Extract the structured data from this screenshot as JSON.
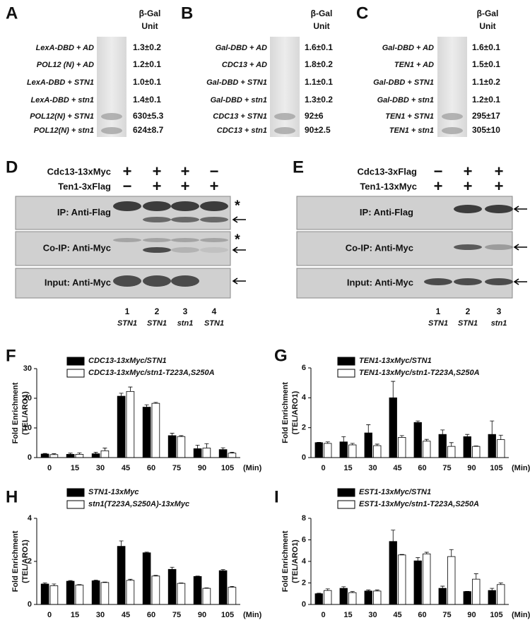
{
  "figure": {
    "panels_abc": [
      {
        "label": "A",
        "header": [
          "β-Gal",
          "Unit"
        ],
        "rows": [
          {
            "construct": "LexA-DBD + AD",
            "value": "1.3±0.2"
          },
          {
            "construct": "POL12 (N) + AD",
            "value": "1.2±0.1"
          },
          {
            "construct": "LexA-DBD + STN1",
            "value": "1.0±0.1"
          },
          {
            "construct": "LexA-DBD + stn1",
            "value": "1.4±0.1"
          },
          {
            "construct": "POL12(N) + STN1",
            "value": "630±5.3"
          },
          {
            "construct": "POL12(N) + stn1",
            "value": "624±8.7"
          }
        ]
      },
      {
        "label": "B",
        "header": [
          "β-Gal",
          "Unit"
        ],
        "rows": [
          {
            "construct": "Gal-DBD + AD",
            "value": "1.6±0.1"
          },
          {
            "construct": "CDC13 + AD",
            "value": "1.8±0.2"
          },
          {
            "construct": "Gal-DBD + STN1",
            "value": "1.1±0.1"
          },
          {
            "construct": "Gal-DBD + stn1",
            "value": "1.3±0.2"
          },
          {
            "construct": "CDC13 + STN1",
            "value": "92±6"
          },
          {
            "construct": "CDC13 + stn1",
            "value": "90±2.5"
          }
        ]
      },
      {
        "label": "C",
        "header": [
          "β-Gal",
          "Unit"
        ],
        "rows": [
          {
            "construct": "Gal-DBD + AD",
            "value": "1.6±0.1"
          },
          {
            "construct": "TEN1 + AD",
            "value": "1.5±0.1"
          },
          {
            "construct": "Gal-DBD + STN1",
            "value": "1.1±0.2"
          },
          {
            "construct": "Gal-DBD + stn1",
            "value": "1.2±0.1"
          },
          {
            "construct": "TEN1 + STN1",
            "value": "295±17"
          },
          {
            "construct": "TEN1 + stn1",
            "value": "305±10"
          }
        ]
      }
    ],
    "panels_de": [
      {
        "label": "D",
        "conditions": [
          {
            "name": "Cdc13-13xMyc",
            "signs": [
              "+",
              "+",
              "+",
              "−"
            ]
          },
          {
            "name": "Ten1-3xFlag",
            "signs": [
              "−",
              "+",
              "+",
              "+"
            ]
          }
        ],
        "blots": [
          {
            "name": "IP: Anti-Flag",
            "asterisk": "*"
          },
          {
            "name": "Co-IP: Anti-Myc",
            "asterisk": "*"
          },
          {
            "name": "Input: Anti-Myc"
          }
        ],
        "lanes": [
          "1",
          "2",
          "3",
          "4"
        ],
        "genotypes": [
          "STN1",
          "STN1",
          "stn1",
          "STN1"
        ]
      },
      {
        "label": "E",
        "conditions": [
          {
            "name": "Cdc13-3xFlag",
            "signs": [
              "−",
              "+",
              "+"
            ]
          },
          {
            "name": "Ten1-13xMyc",
            "signs": [
              "+",
              "+",
              "+"
            ]
          }
        ],
        "blots": [
          {
            "name": "IP: Anti-Flag"
          },
          {
            "name": "Co-IP: Anti-Myc"
          },
          {
            "name": "Input: Anti-Myc"
          }
        ],
        "lanes": [
          "1",
          "2",
          "3"
        ],
        "genotypes": [
          "STN1",
          "STN1",
          "stn1"
        ]
      }
    ]
  },
  "chart_data": [
    {
      "type": "bar",
      "label": "F",
      "ylabel": [
        "Fold Enrichment",
        "(TEL/ARO1)"
      ],
      "xlabel": "(Min)",
      "categories": [
        "0",
        "15",
        "30",
        "45",
        "60",
        "75",
        "90",
        "105"
      ],
      "ylim": [
        0,
        30
      ],
      "yticks": [
        0,
        10,
        20,
        30
      ],
      "series": [
        {
          "name": "CDC13-13xMyc/STN1",
          "color": "#000000",
          "values": [
            1.2,
            1.1,
            1.3,
            20.7,
            17,
            7.4,
            3,
            2.7
          ],
          "errors": [
            0.2,
            0.4,
            0.5,
            1,
            0.8,
            0.8,
            1.2,
            0.6
          ]
        },
        {
          "name": "CDC13-13xMyc/stn1-T223A,S250A",
          "color": "#ffffff",
          "values": [
            1,
            1.1,
            2.3,
            22.3,
            18.3,
            7.1,
            3.2,
            1.5
          ],
          "errors": [
            0.3,
            0.5,
            0.9,
            1.5,
            0.3,
            0.3,
            1.5,
            0.3
          ]
        }
      ]
    },
    {
      "type": "bar",
      "label": "G",
      "ylabel": [
        "Fold Enrichment",
        "(TEL/ARO1)"
      ],
      "xlabel": "(Min)",
      "categories": [
        "0",
        "15",
        "30",
        "45",
        "60",
        "75",
        "90",
        "105"
      ],
      "ylim": [
        0,
        6
      ],
      "yticks": [
        0,
        2,
        4,
        6
      ],
      "series": [
        {
          "name": "TEN1-13xMyc/STN1",
          "color": "#000000",
          "values": [
            1,
            1.05,
            1.65,
            4,
            2.35,
            1.55,
            1.4,
            1.55
          ],
          "errors": [
            0.02,
            0.35,
            0.55,
            1.1,
            0.1,
            0.3,
            0.15,
            0.9
          ]
        },
        {
          "name": "TEN1-13xMyc/stn1-T223A,S250A",
          "color": "#ffffff",
          "values": [
            0.95,
            0.85,
            0.8,
            1.35,
            1.1,
            0.75,
            0.75,
            1.2
          ],
          "errors": [
            0.1,
            0.1,
            0.1,
            0.12,
            0.12,
            0.25,
            0.03,
            0.3
          ]
        }
      ]
    },
    {
      "type": "bar",
      "label": "H",
      "ylabel": [
        "Fold Enrichment",
        "(TEL/ARO1)"
      ],
      "xlabel": "(Min)",
      "categories": [
        "0",
        "15",
        "30",
        "45",
        "60",
        "75",
        "90",
        "105"
      ],
      "ylim": [
        0,
        4
      ],
      "yticks": [
        0,
        2,
        4
      ],
      "series": [
        {
          "name": "STN1-13xMyc",
          "color": "#000000",
          "values": [
            0.95,
            1.08,
            1.1,
            2.7,
            2.4,
            1.63,
            1.3,
            1.57
          ],
          "errors": [
            0.05,
            0.03,
            0.03,
            0.25,
            0.03,
            0.1,
            0.02,
            0.05
          ]
        },
        {
          "name": "stn1(T223A,S250A)-13xMyc",
          "color": "#ffffff",
          "values": [
            0.87,
            0.9,
            1.02,
            1.12,
            1.32,
            0.98,
            0.75,
            0.8
          ],
          "errors": [
            0.08,
            0.02,
            0.02,
            0.05,
            0.03,
            0.02,
            0.02,
            0.04
          ]
        }
      ]
    },
    {
      "type": "bar",
      "label": "I",
      "ylabel": [
        "Fold Enrichment",
        "(TEL/ARO1)"
      ],
      "xlabel": "(Min)",
      "categories": [
        "0",
        "15",
        "30",
        "45",
        "60",
        "75",
        "90",
        "105"
      ],
      "ylim": [
        0,
        8
      ],
      "yticks": [
        0,
        2,
        4,
        6,
        8
      ],
      "series": [
        {
          "name": "EST1-13xMyc/STN1",
          "color": "#000000",
          "values": [
            1,
            1.5,
            1.25,
            5.85,
            4.05,
            1.5,
            1.2,
            1.3
          ],
          "errors": [
            0.05,
            0.15,
            0.1,
            1.05,
            0.3,
            0.2,
            0.02,
            0.2
          ]
        },
        {
          "name": "EST1-13xMyc/stn1-T223A,S250A",
          "color": "#ffffff",
          "values": [
            1.3,
            1.1,
            1.25,
            4.6,
            4.7,
            4.45,
            2.35,
            1.85
          ],
          "errors": [
            0.15,
            0.1,
            0.1,
            0.05,
            0.15,
            0.65,
            0.5,
            0.15
          ]
        }
      ]
    }
  ]
}
